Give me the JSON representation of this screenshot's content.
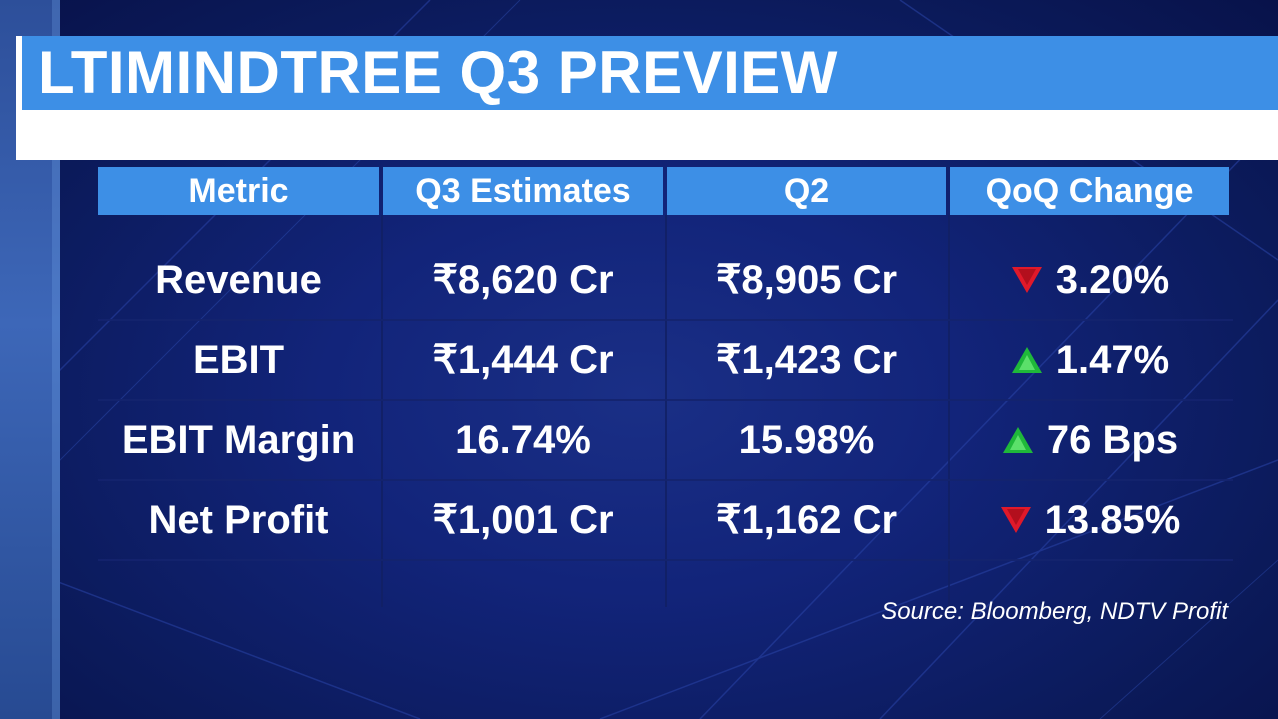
{
  "title": "LTIMINDTREE Q3 PREVIEW",
  "table": {
    "headers": [
      "Metric",
      "Q3 Estimates",
      "Q2",
      "QoQ Change"
    ],
    "rows": [
      {
        "metric": "Revenue",
        "q3": "₹8,620 Cr",
        "q2": "₹8,905 Cr",
        "change": "3.20%",
        "direction": "down"
      },
      {
        "metric": "EBIT",
        "q3": "₹1,444 Cr",
        "q2": "₹1,423 Cr",
        "change": "1.47%",
        "direction": "up"
      },
      {
        "metric": "EBIT Margin",
        "q3": "16.74%",
        "q2": "15.98%",
        "change": "76 Bps",
        "direction": "up"
      },
      {
        "metric": "Net Profit",
        "q3": "₹1,001 Cr",
        "q2": "₹1,162 Cr",
        "change": "13.85%",
        "direction": "down"
      }
    ]
  },
  "source": "Source: Bloomberg, NDTV Profit",
  "colors": {
    "header_blue": "#3d8fe6",
    "background_navy": "#0c1c5e",
    "up_arrow": "#1fb83a",
    "down_arrow": "#e0192a"
  },
  "icons": {
    "up": "up-triangle-icon",
    "down": "down-triangle-icon"
  }
}
